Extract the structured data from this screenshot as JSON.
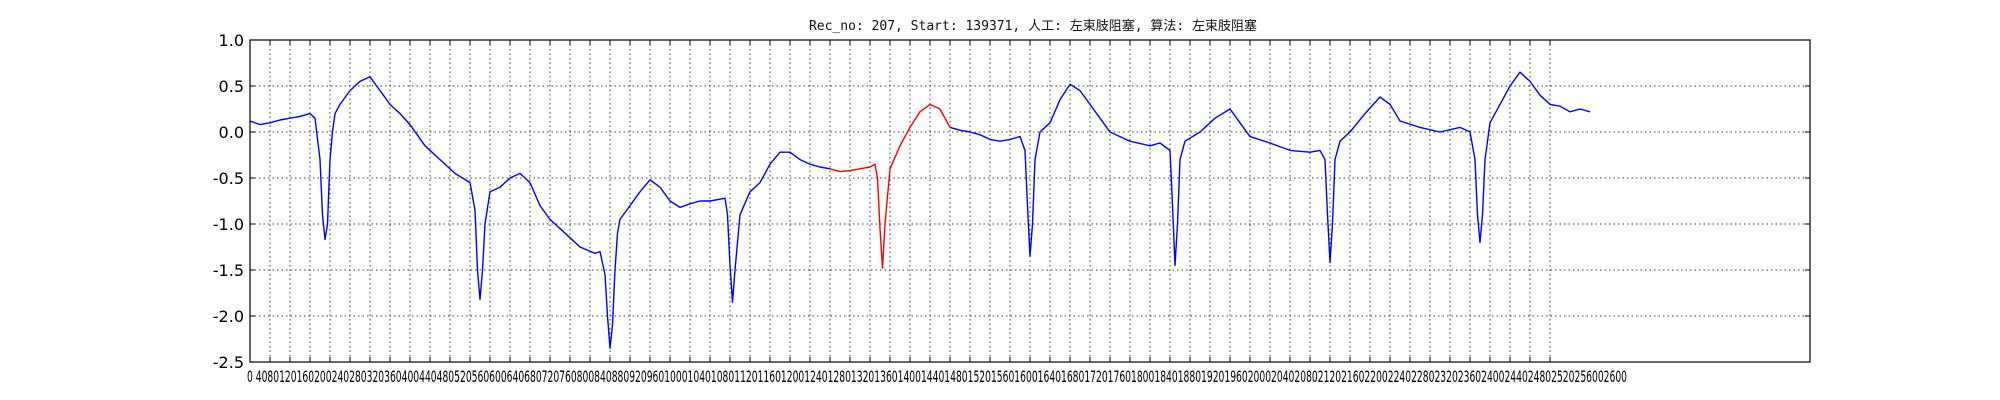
{
  "chart_data": {
    "type": "line",
    "title": "Rec_no: 207, Start: 139371, 人工: 左束肢阻塞, 算法: 左束肢阻塞",
    "xlabel": "",
    "ylabel": "",
    "xlim": [
      0,
      3120
    ],
    "ylim": [
      -2.5,
      1.0
    ],
    "grid": true,
    "y_ticks": [
      "1.0",
      "0.5",
      "0.0",
      "-0.5",
      "-1.0",
      "-1.5",
      "-2.0",
      "-2.5"
    ],
    "y_tick_values": [
      1.0,
      0.5,
      0.0,
      -0.5,
      -1.0,
      -1.5,
      -2.0,
      -2.5
    ],
    "x_tick_values": [
      0,
      40,
      80,
      120,
      160,
      200,
      240,
      280,
      320,
      360,
      400,
      440,
      480,
      520,
      560,
      600,
      640,
      680,
      720,
      760,
      800,
      840,
      880,
      920,
      960,
      1000,
      1040,
      1080,
      1120,
      1160,
      1200,
      1240,
      1280,
      1320,
      1360,
      1400,
      1440,
      1480,
      1520,
      1560,
      1600,
      1640,
      1680,
      1720,
      1760,
      1800,
      1840,
      1880,
      1920,
      1960,
      2000,
      2040,
      2080,
      2120,
      2160,
      2200,
      2240,
      2280,
      2320,
      2360,
      2400,
      2440,
      2480,
      2520,
      2560,
      2600
    ],
    "x_tick_text": "0 4080120160200240280320360400440480520560600640680720760800840880920960100010401080112011601200124012801320136014001440148015201560160016401680172017601800184018801920196020002040208021202160220022402280232023602400244024802520256002600",
    "series": [
      {
        "color": "#0000ff",
        "x": [
          0,
          20,
          40,
          60,
          80,
          100,
          120,
          130,
          140,
          145,
          150,
          155,
          160,
          165,
          170,
          180,
          200,
          220,
          240,
          260,
          280,
          300,
          320,
          350,
          380,
          410,
          440,
          450,
          455,
          460,
          465,
          470,
          480,
          500,
          520,
          540,
          560,
          580,
          600,
          630,
          660,
          690,
          700,
          710,
          715,
          720,
          725,
          730,
          735,
          740,
          760,
          780,
          800,
          820,
          840,
          860,
          880,
          900,
          920,
          940,
          950,
          955,
          960,
          965,
          970,
          980,
          1000,
          1020,
          1040,
          1060,
          1080,
          1100,
          1120,
          1140,
          1160
        ],
        "y": [
          0.12,
          0.08,
          0.1,
          0.13,
          0.15,
          0.17,
          0.2,
          0.15,
          -0.3,
          -0.9,
          -1.17,
          -1.0,
          -0.3,
          0.0,
          0.2,
          0.3,
          0.45,
          0.55,
          0.6,
          0.45,
          0.3,
          0.2,
          0.08,
          -0.15,
          -0.3,
          -0.45,
          -0.55,
          -0.85,
          -1.5,
          -1.82,
          -1.5,
          -1.0,
          -0.65,
          -0.6,
          -0.5,
          -0.45,
          -0.55,
          -0.8,
          -0.95,
          -1.1,
          -1.25,
          -1.32,
          -1.3,
          -1.55,
          -2.0,
          -2.35,
          -2.1,
          -1.5,
          -1.1,
          -0.95,
          -0.8,
          -0.65,
          -0.52,
          -0.6,
          -0.75,
          -0.82,
          -0.78,
          -0.75,
          -0.75,
          -0.73,
          -0.72,
          -0.9,
          -1.45,
          -1.85,
          -1.5,
          -0.9,
          -0.65,
          -0.55,
          -0.35,
          -0.22,
          -0.22,
          -0.3,
          -0.35,
          -0.38,
          -0.4
        ]
      },
      {
        "color": "#ff0000",
        "x": [
          1160,
          1180,
          1200,
          1220,
          1240,
          1250,
          1255,
          1260,
          1265,
          1270,
          1280,
          1300,
          1320,
          1340,
          1360,
          1380,
          1400
        ],
        "y": [
          -0.4,
          -0.43,
          -0.42,
          -0.4,
          -0.38,
          -0.35,
          -0.5,
          -1.05,
          -1.48,
          -1.0,
          -0.4,
          -0.15,
          0.05,
          0.22,
          0.3,
          0.25,
          0.05
        ]
      },
      {
        "color": "#0000ff",
        "x": [
          1400,
          1420,
          1440,
          1460,
          1480,
          1500,
          1520,
          1540,
          1550,
          1555,
          1560,
          1565,
          1570,
          1580,
          1600,
          1620,
          1640,
          1660,
          1680,
          1700,
          1720,
          1760,
          1800,
          1820,
          1840,
          1845,
          1850,
          1855,
          1860,
          1870,
          1900,
          1930,
          1960,
          1980,
          2000,
          2040,
          2080,
          2120,
          2140,
          2150,
          2155,
          2160,
          2165,
          2170,
          2180,
          2200,
          2230,
          2260,
          2280,
          2300,
          2340,
          2380,
          2420,
          2440,
          2450,
          2455,
          2460,
          2465,
          2470,
          2480,
          2500,
          2520,
          2540,
          2560,
          2580,
          2600,
          2620,
          2640,
          2660,
          2680
        ],
        "y": [
          0.05,
          0.02,
          0.0,
          -0.03,
          -0.08,
          -0.1,
          -0.08,
          -0.05,
          -0.2,
          -0.8,
          -1.35,
          -1.0,
          -0.3,
          0.0,
          0.1,
          0.35,
          0.52,
          0.45,
          0.3,
          0.15,
          0.0,
          -0.1,
          -0.15,
          -0.12,
          -0.2,
          -0.8,
          -1.45,
          -1.0,
          -0.3,
          -0.1,
          0.0,
          0.15,
          0.25,
          0.1,
          -0.05,
          -0.12,
          -0.2,
          -0.22,
          -0.2,
          -0.3,
          -0.9,
          -1.42,
          -1.0,
          -0.3,
          -0.1,
          0.0,
          0.2,
          0.38,
          0.3,
          0.12,
          0.05,
          0.0,
          0.05,
          0.0,
          -0.3,
          -0.9,
          -1.2,
          -0.9,
          -0.3,
          0.1,
          0.3,
          0.5,
          0.65,
          0.55,
          0.4,
          0.3,
          0.28,
          0.22,
          0.25,
          0.22
        ]
      }
    ]
  }
}
